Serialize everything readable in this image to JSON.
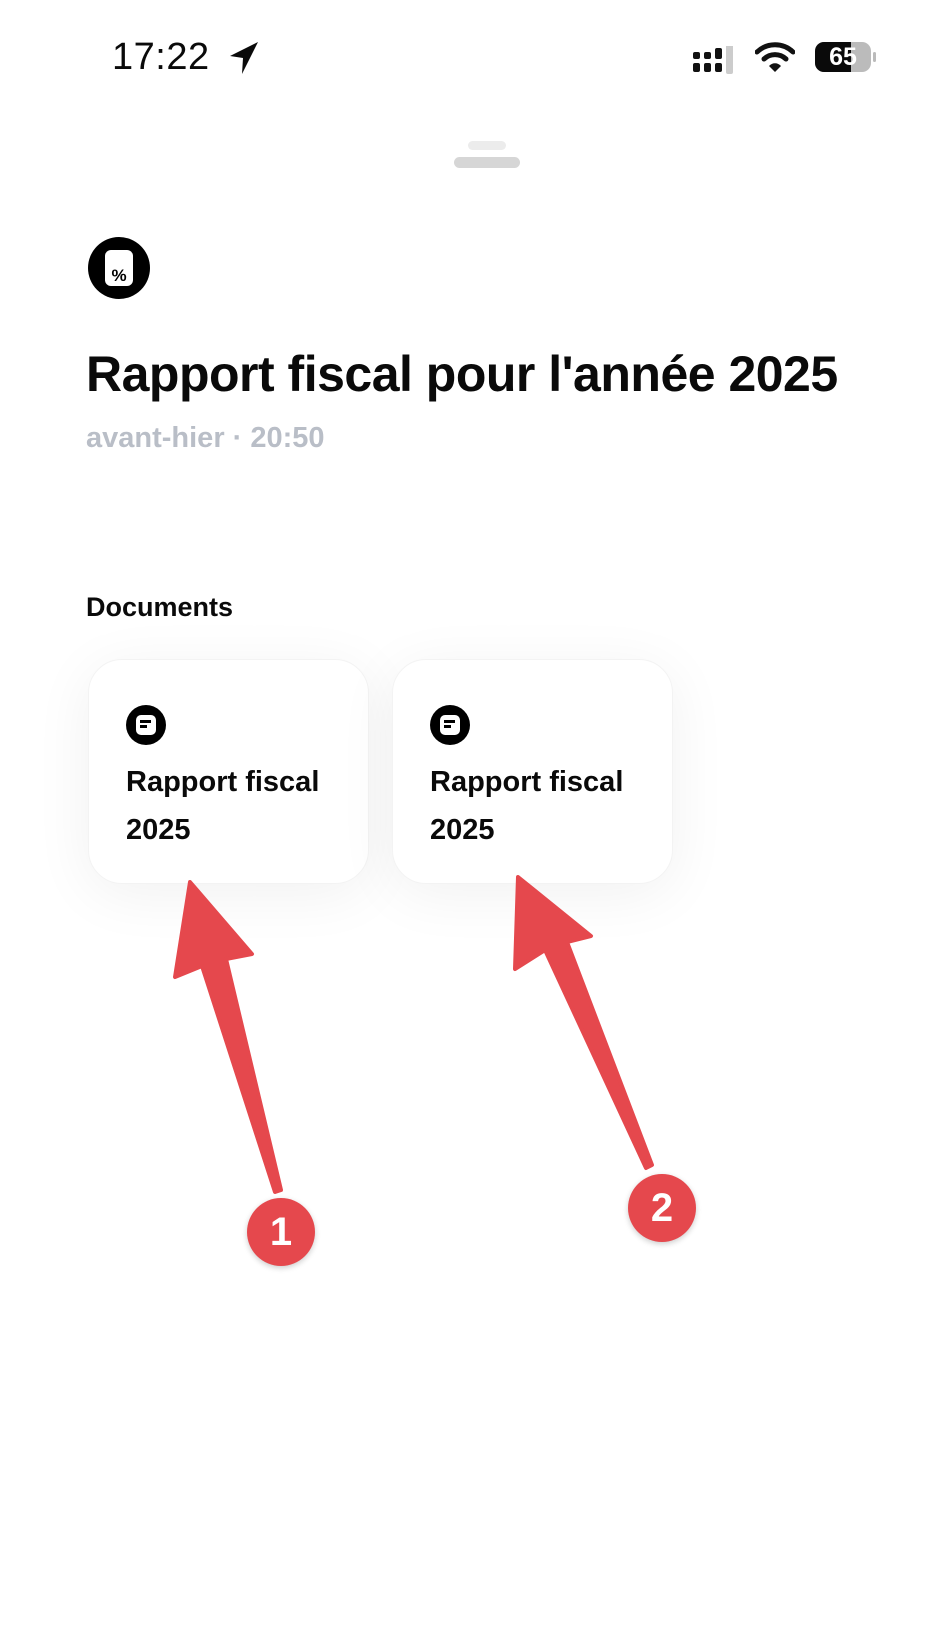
{
  "status_bar": {
    "time": "17:22",
    "battery": "65",
    "icons": [
      "location-arrow-icon",
      "signal-icon",
      "wifi-icon",
      "battery-icon"
    ]
  },
  "header": {
    "icon": "tax-percent-icon",
    "title": "Rapport fiscal pour l'année 2025",
    "subtitle": "avant-hier · 20:50"
  },
  "documents": {
    "heading": "Documents",
    "items": [
      {
        "icon": "document-icon",
        "label": "Rapport fiscal 2025"
      },
      {
        "icon": "document-icon",
        "label": "Rapport fiscal 2025"
      }
    ]
  },
  "annotations": {
    "color": "#e5484d",
    "badges": [
      "1",
      "2"
    ]
  }
}
